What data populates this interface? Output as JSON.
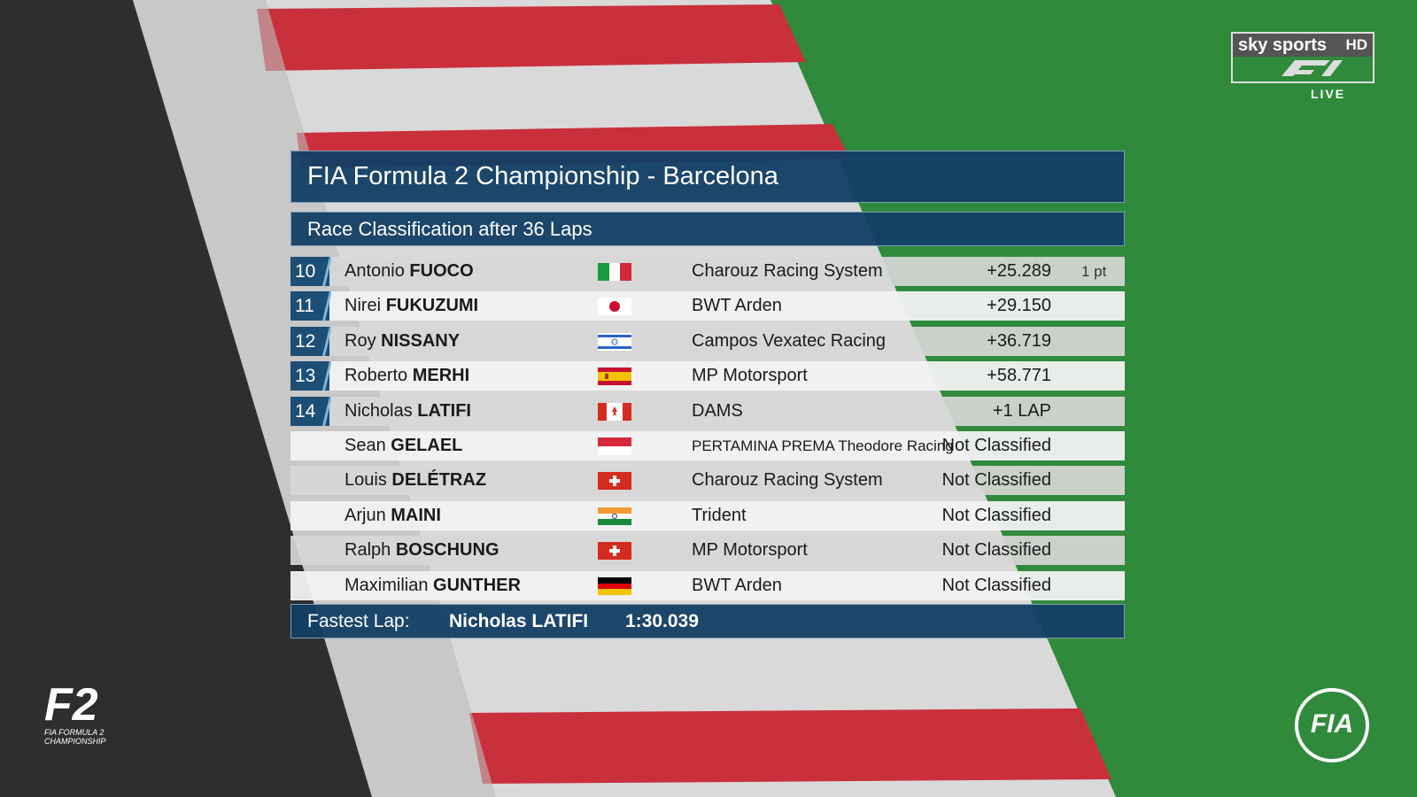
{
  "header": {
    "title": "FIA Formula 2 Championship - Barcelona",
    "subtitle": "Race Classification after 36 Laps"
  },
  "table": {
    "rows": [
      {
        "position": 10,
        "first_name": "Antonio",
        "last_name": "FUOCO",
        "flag": "it",
        "team": "Charouz Racing System",
        "gap": "+25.289",
        "points": "1 pt"
      },
      {
        "position": 11,
        "first_name": "Nirei",
        "last_name": "FUKUZUMI",
        "flag": "jp",
        "team": "BWT Arden",
        "gap": "+29.150"
      },
      {
        "position": 12,
        "first_name": "Roy",
        "last_name": "NISSANY",
        "flag": "il",
        "team": "Campos Vexatec Racing",
        "gap": "+36.719"
      },
      {
        "position": 13,
        "first_name": "Roberto",
        "last_name": "MERHI",
        "flag": "es",
        "team": "MP Motorsport",
        "gap": "+58.771"
      },
      {
        "position": 14,
        "first_name": "Nicholas",
        "last_name": "LATIFI",
        "flag": "ca",
        "team": "DAMS",
        "gap": "+1 LAP"
      },
      {
        "first_name": "Sean",
        "last_name": "GELAEL",
        "flag": "id",
        "team": "PERTAMINA PREMA Theodore Racing",
        "gap": "Not Classified"
      },
      {
        "first_name": "Louis",
        "last_name": "DELÉTRAZ",
        "flag": "ch",
        "team": "Charouz Racing System",
        "gap": "Not Classified"
      },
      {
        "first_name": "Arjun",
        "last_name": "MAINI",
        "flag": "in",
        "team": "Trident",
        "gap": "Not Classified"
      },
      {
        "first_name": "Ralph",
        "last_name": "BOSCHUNG",
        "flag": "ch",
        "team": "MP Motorsport",
        "gap": "Not Classified"
      },
      {
        "first_name": "Maximilian",
        "last_name": "GUNTHER",
        "flag": "de",
        "team": "BWT Arden",
        "gap": "Not Classified"
      }
    ]
  },
  "fastest_lap": {
    "label": "Fastest Lap:",
    "driver": "Nicholas LATIFI",
    "time": "1:30.039"
  },
  "logos": {
    "broadcaster": "sky sports",
    "quality": "HD",
    "live": "LIVE",
    "series": "F2",
    "series_name": "FIA FORMULA 2 CHAMPIONSHIP",
    "federation": "FIA"
  }
}
